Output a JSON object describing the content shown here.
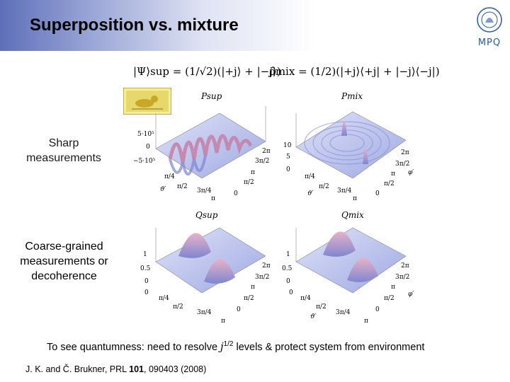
{
  "title": "Superposition vs. mixture",
  "logo_text": "MPQ",
  "equations": {
    "superposition": "|Ψ⟩sup = (1/√2)(|+j⟩ + |−j⟩)",
    "mixture": "ρ̂mix = (1/2)(|+j⟩⟨+j| + |−j⟩⟨−j|)"
  },
  "row_labels": {
    "sharp": "Sharp measurements",
    "coarse": "Coarse-grained measurements or decoherence"
  },
  "plots": {
    "p_sup": {
      "title": "Psup",
      "z_ticks": [
        "5·10⁵",
        "0",
        "−5·10⁵"
      ]
    },
    "p_mix": {
      "title": "Pmix",
      "z_ticks": [
        "10",
        "5",
        "0"
      ]
    },
    "q_sup": {
      "title": "Qsup",
      "z_ticks": [
        "1",
        "0.5",
        "0"
      ]
    },
    "q_mix": {
      "title": "Qmix",
      "z_ticks": [
        "1",
        "0.5",
        "0"
      ]
    },
    "theta_ticks": [
      "0",
      "π/4",
      "π/2",
      "3π/4",
      "π"
    ],
    "phi_ticks": [
      "2π",
      "3π/2",
      "π",
      "π/2",
      "0"
    ],
    "theta_label": "ϑ′",
    "phi_label": "φ′"
  },
  "bottom_text": {
    "before": "To see quantumness: need to resolve ",
    "j": "j",
    "exp": "1/2",
    "after": " levels & protect system from environment"
  },
  "reference": {
    "authors": "J. K. and Č. Brukner, PRL ",
    "volume": "101",
    "rest": ", 090403 (2008)"
  },
  "colors": {
    "surface_light": "#c9cff2",
    "surface_mid": "#9aa3e0",
    "peak": "#c98bb0",
    "accent": "#3a55c8"
  }
}
